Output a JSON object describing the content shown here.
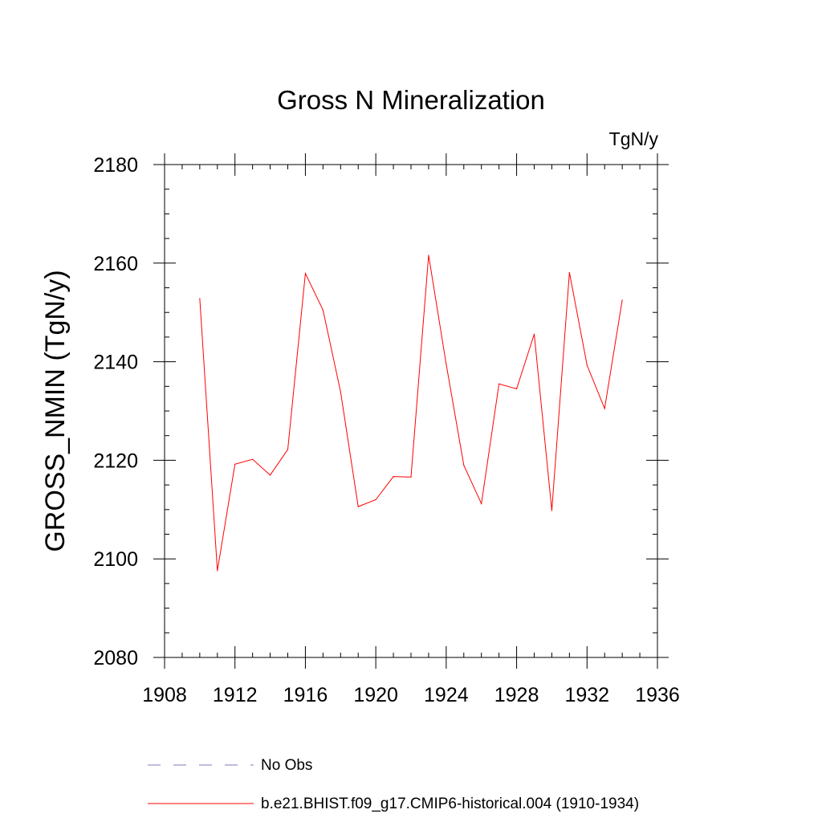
{
  "chart_data": {
    "type": "line",
    "title": "Gross N Mineralization",
    "units_label": "TgN/y",
    "xlabel": "",
    "ylabel": "GROSS_NMIN  (TgN/y)",
    "xlim": [
      1908,
      1936
    ],
    "ylim": [
      2080,
      2180
    ],
    "x_major_ticks": [
      1908,
      1912,
      1916,
      1920,
      1924,
      1928,
      1932,
      1936
    ],
    "x_tick_labels": [
      "1908",
      "1912",
      "1916",
      "1920",
      "1924",
      "1928",
      "1932",
      "1936"
    ],
    "x_minor_step": 1,
    "y_major_ticks": [
      2080,
      2100,
      2120,
      2140,
      2160,
      2180
    ],
    "y_tick_labels": [
      "2080",
      "2100",
      "2120",
      "2140",
      "2160",
      "2180"
    ],
    "y_minor_step": 5,
    "grid": false,
    "legend_position": "bottom",
    "series": [
      {
        "name": "b.e21.BHIST.f09_g17.CMIP6-historical.004 (1910-1934)",
        "color": "#ff0000",
        "style": "solid",
        "x": [
          1910,
          1911,
          1912,
          1913,
          1914,
          1915,
          1916,
          1917,
          1918,
          1919,
          1920,
          1921,
          1922,
          1923,
          1924,
          1925,
          1926,
          1927,
          1928,
          1929,
          1930,
          1931,
          1932,
          1933,
          1934
        ],
        "values": [
          2152.8,
          2097.6,
          2119.2,
          2120.2,
          2117.0,
          2122.2,
          2157.9,
          2150.5,
          2133.9,
          2110.6,
          2112.0,
          2116.7,
          2116.6,
          2161.6,
          2139.5,
          2119.0,
          2111.2,
          2135.5,
          2134.5,
          2145.6,
          2109.8,
          2158.1,
          2139.3,
          2130.5,
          2152.5
        ]
      }
    ],
    "legend": [
      {
        "label": "No Obs",
        "color": "#7b7bbd",
        "style": "dashed"
      },
      {
        "label": "b.e21.BHIST.f09_g17.CMIP6-historical.004 (1910-1934)",
        "color": "#ff0000",
        "style": "solid"
      }
    ]
  }
}
